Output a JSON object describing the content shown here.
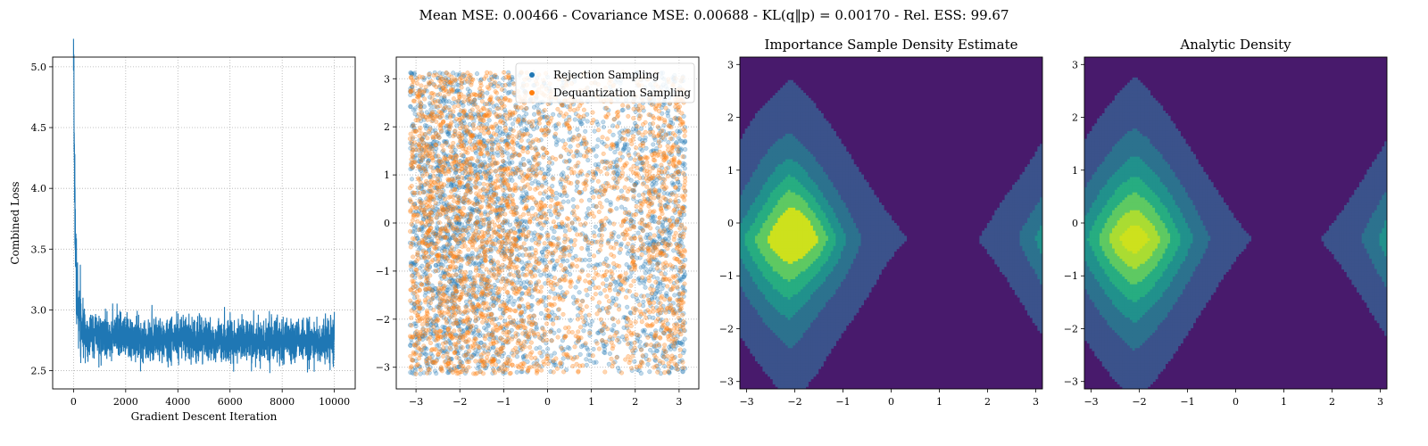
{
  "suptitle": "Mean MSE: 0.00466 - Covariance MSE: 0.00688 - KL(q‖p) = 0.00170 - Rel. ESS: 99.67",
  "colors": {
    "blue": "#1f77b4",
    "orange": "#ff7f0e",
    "viridis_levels": [
      "#440154",
      "#481a6c",
      "#3b528b",
      "#2c728e",
      "#21918c",
      "#27ad81",
      "#5ec962",
      "#aadc32",
      "#cde11d"
    ]
  },
  "chart_data": [
    {
      "type": "line",
      "title": "",
      "xlabel": "Gradient Descent Iteration",
      "ylabel": "Combined Loss",
      "xlim": [
        -800,
        10800
      ],
      "ylim": [
        2.35,
        5.08
      ],
      "xticks": [
        "0",
        "2000",
        "4000",
        "6000",
        "8000",
        "10000"
      ],
      "yticks": [
        "2.5",
        "3.0",
        "3.5",
        "4.0",
        "4.5",
        "5.0"
      ],
      "grid": true,
      "series": [
        {
          "color": "#1f77b4",
          "x": [
            0,
            20,
            40,
            60,
            80,
            100,
            150,
            200,
            300,
            500,
            1000,
            2000,
            3000,
            4000,
            5000,
            6000,
            7000,
            8000,
            9000,
            10000
          ],
          "y": [
            4.97,
            4.6,
            4.1,
            3.8,
            3.5,
            3.3,
            3.1,
            2.95,
            2.85,
            2.8,
            2.78,
            2.77,
            2.76,
            2.76,
            2.75,
            2.75,
            2.75,
            2.74,
            2.74,
            2.74
          ],
          "noise_band": [
            2.5,
            3.1
          ]
        }
      ]
    },
    {
      "type": "scatter",
      "title": "",
      "xlim": [
        -3.45,
        3.45
      ],
      "ylim": [
        -3.45,
        3.45
      ],
      "xticks": [
        "−3",
        "−2",
        "−1",
        "0",
        "1",
        "2",
        "3"
      ],
      "yticks": [
        "−3",
        "−2",
        "−1",
        "0",
        "1",
        "2",
        "3"
      ],
      "grid": true,
      "legend_position": "top-right",
      "series": [
        {
          "name": "Rejection Sampling",
          "color": "#1f77b4",
          "n_points": 3000,
          "domain": [
            -3.14,
            3.14
          ]
        },
        {
          "name": "Dequantization Sampling",
          "color": "#ff7f0e",
          "n_points": 3000,
          "domain": [
            -3.14,
            3.14
          ]
        }
      ]
    },
    {
      "type": "heatmap",
      "title": "Importance Sample Density Estimate",
      "xlim": [
        -3.14,
        3.14
      ],
      "ylim": [
        -3.14,
        3.14
      ],
      "xticks": [
        "−3",
        "−2",
        "−1",
        "0",
        "1",
        "2",
        "3"
      ],
      "yticks": [
        "−3",
        "−2",
        "−1",
        "0",
        "1",
        "2",
        "3"
      ],
      "center": [
        -2.1,
        -0.3
      ],
      "levels": 6
    },
    {
      "type": "heatmap",
      "title": "Analytic Density",
      "xlim": [
        -3.14,
        3.14
      ],
      "ylim": [
        -3.14,
        3.14
      ],
      "xticks": [
        "−3",
        "−2",
        "−1",
        "0",
        "1",
        "2",
        "3"
      ],
      "yticks": [
        "−3",
        "−2",
        "−1",
        "0",
        "1",
        "2",
        "3"
      ],
      "center": [
        -2.1,
        -0.3
      ],
      "levels": 7
    }
  ]
}
